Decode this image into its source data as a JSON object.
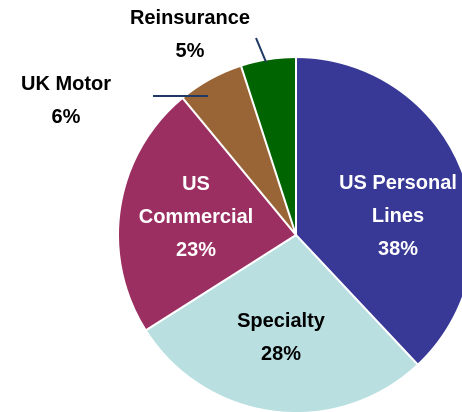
{
  "chart_data": {
    "type": "pie",
    "categories": [
      "US Personal Lines",
      "Specialty",
      "US Commercial",
      "UK Motor",
      "Reinsurance"
    ],
    "values": [
      38,
      28,
      23,
      6,
      5
    ],
    "value_labels": [
      "38%",
      "28%",
      "23%",
      "6%",
      "5%"
    ],
    "colors": [
      "#383896",
      "#b9dfe1",
      "#9c2f62",
      "#9a6536",
      "#006400"
    ]
  }
}
